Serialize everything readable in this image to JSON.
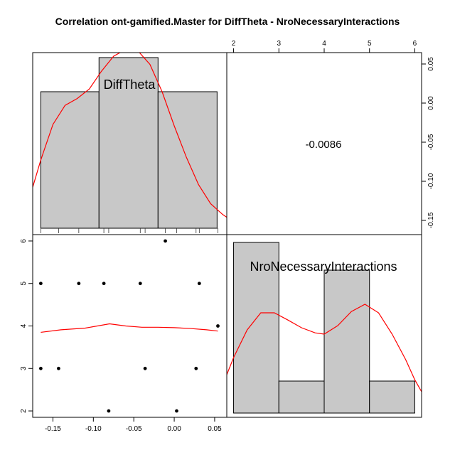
{
  "chart_data": {
    "type": "scatter_matrix",
    "title": "Correlation ont-gamified.Master for DiffTheta - NroNecessaryInteractions",
    "variables": [
      "DiffTheta",
      "NroNecessaryInteractions"
    ],
    "correlation": "-0.0086",
    "colors": {
      "bars": "#c8c8c8",
      "density": "#ff0000",
      "points": "#000000",
      "border": "#000000"
    },
    "diff_theta": {
      "range": [
        -0.175,
        0.065
      ],
      "ticks": [
        -0.15,
        -0.1,
        -0.05,
        0.0,
        0.05
      ],
      "tick_labels": [
        "-0.15",
        "-0.10",
        "-0.05",
        "0.00",
        "0.05"
      ],
      "histogram": {
        "bins": [
          [
            -0.165,
            -0.093
          ],
          [
            -0.093,
            -0.02
          ],
          [
            -0.02,
            0.053
          ]
        ],
        "heights": [
          1.0,
          1.25,
          1.0
        ]
      },
      "rug": [
        -0.165,
        -0.143,
        -0.118,
        -0.087,
        -0.081,
        -0.042,
        -0.036,
        -0.011,
        0.003,
        0.027,
        0.031,
        0.054
      ],
      "density": [
        [
          -0.178,
          0.24
        ],
        [
          -0.165,
          0.5
        ],
        [
          -0.15,
          0.76
        ],
        [
          -0.135,
          0.9
        ],
        [
          -0.12,
          0.95
        ],
        [
          -0.105,
          1.02
        ],
        [
          -0.09,
          1.15
        ],
        [
          -0.075,
          1.26
        ],
        [
          -0.06,
          1.31
        ],
        [
          -0.045,
          1.3
        ],
        [
          -0.03,
          1.2
        ],
        [
          -0.015,
          1.0
        ],
        [
          0.0,
          0.75
        ],
        [
          0.015,
          0.52
        ],
        [
          0.03,
          0.32
        ],
        [
          0.045,
          0.18
        ],
        [
          0.06,
          0.1
        ],
        [
          0.065,
          0.08
        ]
      ]
    },
    "nro_necessary_interactions": {
      "range": [
        1.85,
        6.15
      ],
      "ticks": [
        2,
        3,
        4,
        5,
        6
      ],
      "tick_labels": [
        "2",
        "3",
        "4",
        "5",
        "6"
      ],
      "histogram": {
        "bins": [
          [
            2,
            3
          ],
          [
            3,
            4
          ],
          [
            4,
            5
          ],
          [
            5,
            6
          ]
        ],
        "heights": [
          4,
          0.75,
          3.35,
          0.75
        ]
      },
      "density": [
        [
          1.85,
          0.9
        ],
        [
          2.0,
          1.3
        ],
        [
          2.3,
          1.95
        ],
        [
          2.6,
          2.35
        ],
        [
          2.9,
          2.35
        ],
        [
          3.2,
          2.18
        ],
        [
          3.5,
          2.0
        ],
        [
          3.8,
          1.88
        ],
        [
          4.0,
          1.85
        ],
        [
          4.3,
          2.05
        ],
        [
          4.6,
          2.38
        ],
        [
          4.9,
          2.55
        ],
        [
          5.2,
          2.35
        ],
        [
          5.5,
          1.85
        ],
        [
          5.8,
          1.25
        ],
        [
          6.0,
          0.78
        ],
        [
          6.15,
          0.5
        ]
      ]
    },
    "scatter_points": [
      [
        -0.165,
        5
      ],
      [
        -0.165,
        3
      ],
      [
        -0.143,
        3
      ],
      [
        -0.118,
        5
      ],
      [
        -0.087,
        5
      ],
      [
        -0.081,
        2
      ],
      [
        -0.042,
        5
      ],
      [
        -0.036,
        3
      ],
      [
        -0.011,
        6
      ],
      [
        0.003,
        2
      ],
      [
        0.027,
        3
      ],
      [
        0.031,
        5
      ],
      [
        0.054,
        4
      ]
    ],
    "smooth_line": [
      [
        -0.165,
        3.85
      ],
      [
        -0.14,
        3.91
      ],
      [
        -0.11,
        3.95
      ],
      [
        -0.08,
        4.05
      ],
      [
        -0.06,
        4.0
      ],
      [
        -0.04,
        3.97
      ],
      [
        -0.02,
        3.97
      ],
      [
        0.0,
        3.96
      ],
      [
        0.02,
        3.94
      ],
      [
        0.04,
        3.91
      ],
      [
        0.054,
        3.88
      ]
    ]
  }
}
